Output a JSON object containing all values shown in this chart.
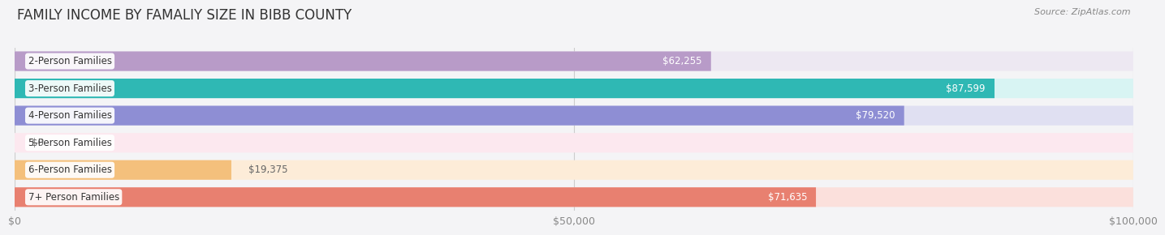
{
  "title": "FAMILY INCOME BY FAMALIY SIZE IN BIBB COUNTY",
  "source": "Source: ZipAtlas.com",
  "categories": [
    "2-Person Families",
    "3-Person Families",
    "4-Person Families",
    "5-Person Families",
    "6-Person Families",
    "7+ Person Families"
  ],
  "values": [
    62255,
    87599,
    79520,
    0,
    19375,
    71635
  ],
  "bar_colors": [
    "#b89bc8",
    "#2fb8b4",
    "#8e8ed4",
    "#f4a0b8",
    "#f4c07c",
    "#e88070"
  ],
  "bar_bg_colors": [
    "#ede8f2",
    "#d8f4f3",
    "#e0e0f2",
    "#fce8ef",
    "#fdecd8",
    "#fbe0dc"
  ],
  "xlim": [
    0,
    100000
  ],
  "xticks": [
    0,
    50000,
    100000
  ],
  "xtick_labels": [
    "$0",
    "$50,000",
    "$100,000"
  ],
  "title_fontsize": 12,
  "source_fontsize": 8,
  "bar_height": 0.72,
  "label_fontsize": 8.5,
  "category_fontsize": 8.5,
  "background_color": "#f4f4f6"
}
